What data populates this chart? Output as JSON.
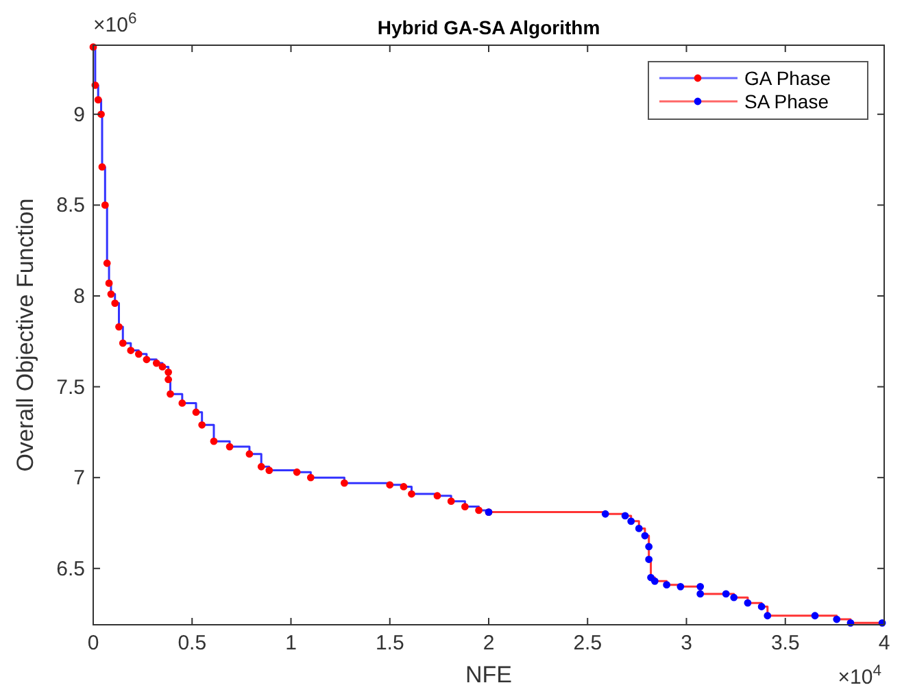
{
  "chart_data": {
    "type": "step",
    "title": "Hybrid GA-SA Algorithm",
    "xlabel": "NFE",
    "ylabel": "Overall Objective Function",
    "annotations": [
      "×10$^{6}$",
      "×10$^{4}$"
    ],
    "xlim": [
      0,
      4
    ],
    "xticks": [
      0,
      0.5,
      1,
      1.5,
      2,
      2.5,
      3,
      3.5,
      4
    ],
    "ylim": [
      6.19,
      9.38
    ],
    "yticks": [
      6.5,
      7,
      7.5,
      8,
      8.5,
      9
    ],
    "grid": false,
    "legend": "top right",
    "marker": "circle",
    "line_style": "solid",
    "series": [
      {
        "name": "GA Phase",
        "color": "#0000ff",
        "x": [
          0,
          0.01,
          0.025,
          0.04,
          0.045,
          0.06,
          0.07,
          0.08,
          0.09,
          0.11,
          0.13,
          0.15,
          0.19,
          0.23,
          0.27,
          0.32,
          0.35,
          0.38,
          0.38,
          0.39,
          0.45,
          0.52,
          0.55,
          0.61,
          0.69,
          0.79,
          0.85,
          0.89,
          1.03,
          1.1,
          1.27,
          1.5,
          1.57,
          1.61,
          1.74,
          1.81,
          1.88,
          1.95,
          2.0
        ],
        "values": [
          9.37,
          9.16,
          9.08,
          9.0,
          8.71,
          8.5,
          8.18,
          8.07,
          8.01,
          7.96,
          7.83,
          7.74,
          7.7,
          7.68,
          7.65,
          7.63,
          7.61,
          7.58,
          7.54,
          7.46,
          7.41,
          7.36,
          7.29,
          7.2,
          7.17,
          7.13,
          7.06,
          7.04,
          7.03,
          7.0,
          6.97,
          6.96,
          6.95,
          6.91,
          6.9,
          6.87,
          6.84,
          6.82,
          6.81
        ]
      },
      {
        "name": "SA Phase",
        "color": "#ff0000",
        "x": [
          2.0,
          2.59,
          2.69,
          2.72,
          2.76,
          2.79,
          2.81,
          2.81,
          2.82,
          2.84,
          2.9,
          2.97,
          3.07,
          3.07,
          3.2,
          3.24,
          3.31,
          3.38,
          3.41,
          3.65,
          3.76,
          3.83,
          3.99
        ],
        "values": [
          6.81,
          6.8,
          6.79,
          6.76,
          6.72,
          6.68,
          6.62,
          6.55,
          6.45,
          6.43,
          6.41,
          6.4,
          6.4,
          6.36,
          6.36,
          6.34,
          6.31,
          6.29,
          6.24,
          6.24,
          6.22,
          6.2,
          6.2
        ]
      }
    ]
  }
}
